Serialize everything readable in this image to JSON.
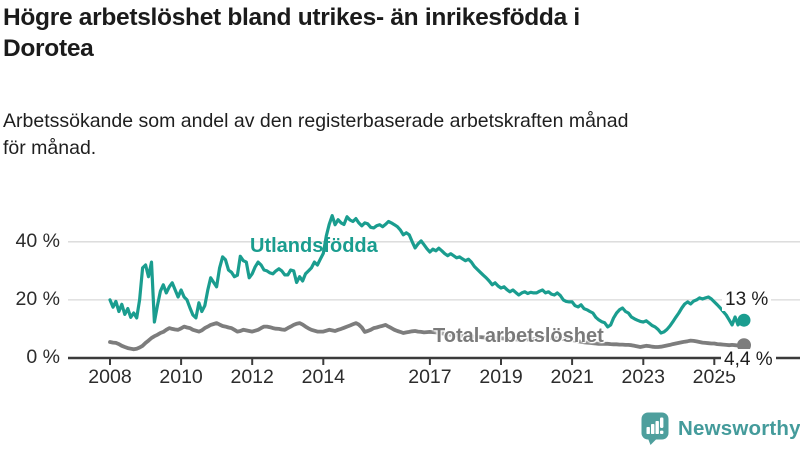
{
  "header": {
    "title_lines": [
      "Högre arbetslöshet bland utrikes- än inrikesfödda i",
      "Dorotea"
    ],
    "subtitle_lines": [
      "Arbetssökande som andel av den registerbaserade arbetskraften månad",
      "för månad."
    ]
  },
  "footer": {
    "brand": "Newsworthy",
    "logo_icon": "bar-chart-speech-bubble-icon",
    "brand_color": "#449b9b"
  },
  "chart_data": {
    "type": "line",
    "title": "Högre arbetslöshet bland utrikes- än inrikesfödda i Dorotea",
    "subtitle": "Arbetssökande som andel av den registerbaserade arbetskraften månad för månad.",
    "x_unit": "month",
    "x_start": "2008-01",
    "x_end": "2025-11",
    "x_tick_labels": [
      "2008",
      "2010",
      "2012",
      "2014",
      "2017",
      "2019",
      "2021",
      "2023",
      "2025"
    ],
    "x_tick_years": [
      2008,
      2010,
      2012,
      2014,
      2017,
      2019,
      2021,
      2023,
      2025
    ],
    "y_ticks": [
      0,
      20,
      40
    ],
    "y_tick_labels": [
      "0 %",
      "20 %",
      "40 %"
    ],
    "ylim": [
      0,
      52
    ],
    "grid": "horizontal",
    "grid_color": "#d8d8d8",
    "axis_color": "#3b3b3b",
    "legend_position": "inline-labels",
    "series": [
      {
        "name": "Utlandsfödda",
        "color": "#1a9d8f",
        "end_label": "13 %",
        "end_value": 13,
        "values": [
          20.0,
          17.5,
          19.5,
          16.0,
          18.5,
          15.0,
          17.0,
          14.0,
          15.5,
          13.8,
          20.0,
          31.0,
          32.0,
          28.0,
          33.0,
          12.4,
          18.0,
          23.0,
          25.2,
          22.4,
          24.5,
          25.9,
          23.4,
          21.0,
          23.4,
          21.0,
          20.0,
          17.2,
          14.8,
          13.8,
          19.0,
          16.0,
          18.0,
          23.4,
          27.6,
          26.0,
          24.5,
          31.0,
          34.8,
          33.8,
          30.3,
          29.5,
          28.0,
          28.5,
          35.0,
          33.5,
          33.0,
          27.6,
          29.0,
          31.4,
          33.0,
          32.0,
          30.3,
          30.0,
          29.3,
          29.0,
          30.0,
          30.7,
          30.0,
          28.6,
          28.6,
          30.3,
          30.0,
          26.0,
          28.0,
          26.5,
          29.0,
          30.0,
          31.0,
          33.0,
          32.0,
          34.0,
          36.0,
          42.0,
          46.0,
          49.0,
          45.9,
          47.6,
          46.5,
          46.0,
          48.6,
          47.5,
          47.0,
          48.0,
          46.5,
          45.5,
          46.5,
          46.2,
          45.0,
          44.8,
          45.5,
          45.9,
          45.2,
          46.0,
          47.0,
          46.5,
          45.9,
          45.2,
          44.1,
          42.4,
          43.1,
          42.4,
          40.0,
          37.9,
          39.3,
          40.3,
          39.0,
          37.6,
          36.5,
          37.5,
          36.9,
          37.8,
          36.9,
          35.9,
          35.2,
          35.9,
          35.2,
          34.5,
          34.8,
          34.1,
          33.5,
          34.0,
          33.0,
          31.5,
          30.5,
          29.5,
          28.5,
          27.6,
          26.5,
          25.2,
          25.9,
          24.8,
          24.1,
          24.5,
          23.5,
          22.8,
          23.4,
          22.5,
          21.7,
          22.4,
          22.8,
          22.2,
          22.6,
          22.4,
          22.4,
          23.0,
          23.4,
          22.4,
          22.8,
          22.0,
          21.7,
          22.4,
          21.5,
          20.0,
          19.5,
          19.3,
          19.3,
          18.0,
          17.6,
          18.3,
          17.0,
          16.6,
          16.0,
          15.5,
          14.0,
          13.1,
          12.5,
          12.1,
          10.7,
          11.4,
          13.8,
          15.5,
          16.6,
          17.2,
          16.0,
          15.5,
          14.1,
          13.5,
          13.0,
          12.6,
          12.4,
          12.8,
          12.0,
          11.2,
          10.7,
          9.8,
          8.6,
          9.0,
          9.8,
          11.0,
          12.5,
          14.0,
          15.5,
          17.2,
          18.6,
          19.3,
          18.6,
          19.6,
          20.0,
          20.7,
          20.3,
          20.7,
          21.0,
          20.3,
          19.3,
          18.3,
          17.2,
          16.0,
          14.8,
          13.1,
          11.4,
          14.1,
          11.4,
          12.4,
          13.0
        ]
      },
      {
        "name": "Total arbetslöshet",
        "color": "#7d7d7d",
        "end_label": "4,4 %",
        "end_value": 4.4,
        "values": [
          5.5,
          5.3,
          5.2,
          4.8,
          4.2,
          3.8,
          3.4,
          3.2,
          3.0,
          3.2,
          3.6,
          4.2,
          5.2,
          6.0,
          6.9,
          7.5,
          8.0,
          8.6,
          9.0,
          9.7,
          10.3,
          10.0,
          9.8,
          9.7,
          10.2,
          10.8,
          10.5,
          10.3,
          9.7,
          9.4,
          9.1,
          9.5,
          10.3,
          10.8,
          11.4,
          11.7,
          12.0,
          11.5,
          11.0,
          10.8,
          10.5,
          10.3,
          9.7,
          9.1,
          9.3,
          9.7,
          9.5,
          9.3,
          9.1,
          9.4,
          9.7,
          10.3,
          10.8,
          10.8,
          10.6,
          10.3,
          10.1,
          10.0,
          9.8,
          9.7,
          10.3,
          10.8,
          11.4,
          11.8,
          12.0,
          11.5,
          10.8,
          10.2,
          9.7,
          9.4,
          9.1,
          9.1,
          9.1,
          9.4,
          9.7,
          9.5,
          9.3,
          9.7,
          10.0,
          10.4,
          10.8,
          11.2,
          11.6,
          12.0,
          11.5,
          10.5,
          9.0,
          9.3,
          9.7,
          10.3,
          10.5,
          10.8,
          11.1,
          11.4,
          10.8,
          10.3,
          9.7,
          9.3,
          9.0,
          8.6,
          8.8,
          9.0,
          9.2,
          9.3,
          9.1,
          9.0,
          8.8,
          8.9,
          9.0,
          8.9,
          8.8,
          8.6,
          8.5,
          8.3,
          8.2,
          8.0,
          7.9,
          7.8,
          7.7,
          7.6,
          7.6,
          7.5,
          7.4,
          7.3,
          7.2,
          7.2,
          7.1,
          7.0,
          7.0,
          6.9,
          6.8,
          6.8,
          6.8,
          6.7,
          6.6,
          6.5,
          6.4,
          6.4,
          6.3,
          6.3,
          6.3,
          6.4,
          6.4,
          6.5,
          6.5,
          6.6,
          6.8,
          7.0,
          7.0,
          6.9,
          6.8,
          6.7,
          6.6,
          6.5,
          6.4,
          6.3,
          6.2,
          6.0,
          5.8,
          5.6,
          5.4,
          5.3,
          5.2,
          5.1,
          5.0,
          4.9,
          4.9,
          4.9,
          4.9,
          4.8,
          4.7,
          4.7,
          4.6,
          4.6,
          4.5,
          4.5,
          4.4,
          4.2,
          4.0,
          3.8,
          4.0,
          4.2,
          4.1,
          3.9,
          3.8,
          3.8,
          3.9,
          4.1,
          4.3,
          4.5,
          4.8,
          5.0,
          5.2,
          5.4,
          5.6,
          5.8,
          6.0,
          5.9,
          5.7,
          5.5,
          5.3,
          5.2,
          5.1,
          5.0,
          5.0,
          4.8,
          4.7,
          4.6,
          4.5,
          4.4,
          4.5,
          4.4,
          4.3,
          4.4,
          4.4
        ]
      }
    ]
  }
}
